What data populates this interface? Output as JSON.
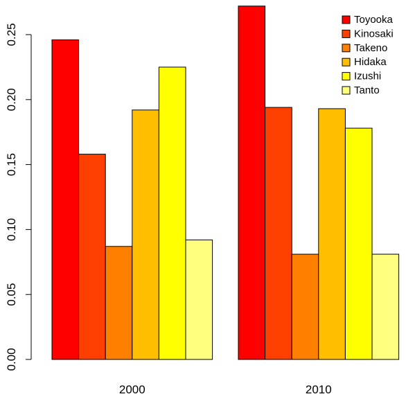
{
  "chart_data": {
    "type": "bar",
    "layout": "grouped",
    "categories": [
      "2000",
      "2010"
    ],
    "series": [
      {
        "name": "Toyooka",
        "color": "#FF0000",
        "values": [
          0.246,
          0.272
        ]
      },
      {
        "name": "Kinosaki",
        "color": "#FF4000",
        "values": [
          0.158,
          0.194
        ]
      },
      {
        "name": "Takeno",
        "color": "#FF8000",
        "values": [
          0.087,
          0.081
        ]
      },
      {
        "name": "Hidaka",
        "color": "#FFBF00",
        "values": [
          0.192,
          0.193
        ]
      },
      {
        "name": "Izushi",
        "color": "#FFFF00",
        "values": [
          0.225,
          0.178
        ]
      },
      {
        "name": "Tanto",
        "color": "#FFFF80",
        "values": [
          0.092,
          0.081
        ]
      }
    ],
    "yticks": [
      "0.00",
      "0.05",
      "0.10",
      "0.15",
      "0.20",
      "0.25"
    ],
    "ylim": [
      0,
      0.25
    ],
    "title": "",
    "xlabel": "",
    "ylabel": "",
    "grid": false,
    "legend": "top-right"
  }
}
